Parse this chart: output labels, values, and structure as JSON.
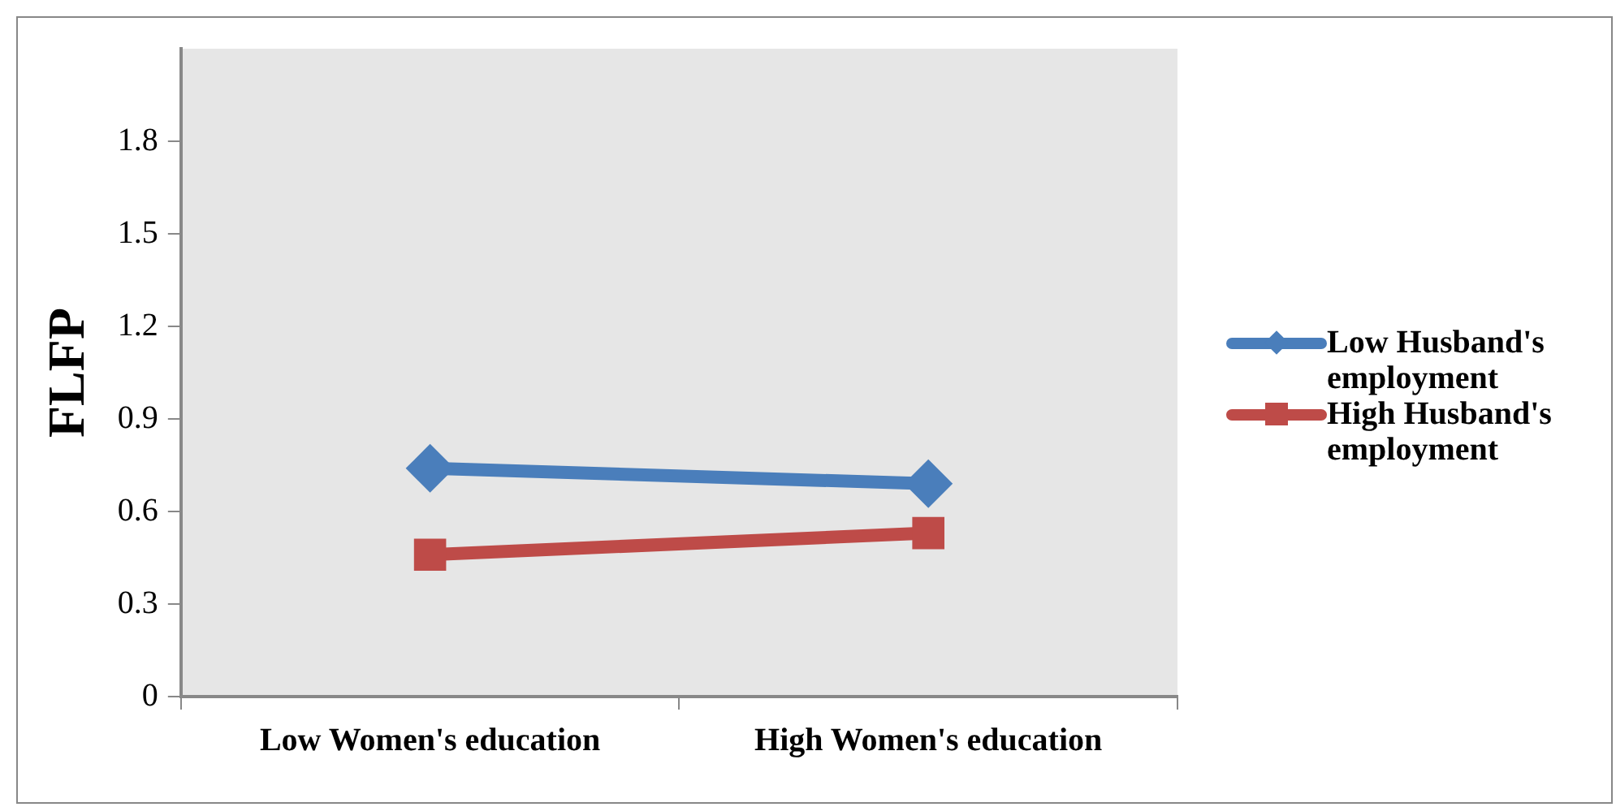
{
  "chart_data": {
    "type": "line",
    "ylabel": "FLFP",
    "categories": [
      "Low Women's education",
      "High Women's education"
    ],
    "series": [
      {
        "name": "Low Husband's employment",
        "color": "#4a7ebb",
        "values": [
          0.74,
          0.69
        ],
        "marker": "diamond"
      },
      {
        "name": "High Husband's employment",
        "color": "#be4b48",
        "values": [
          0.46,
          0.53
        ],
        "marker": "square"
      }
    ],
    "ylim": [
      0,
      2.1
    ],
    "yticks": [
      0,
      0.3,
      0.6,
      0.9,
      1.2,
      1.5,
      1.8
    ],
    "grid": false,
    "legend": "right",
    "line_style": "solid"
  }
}
